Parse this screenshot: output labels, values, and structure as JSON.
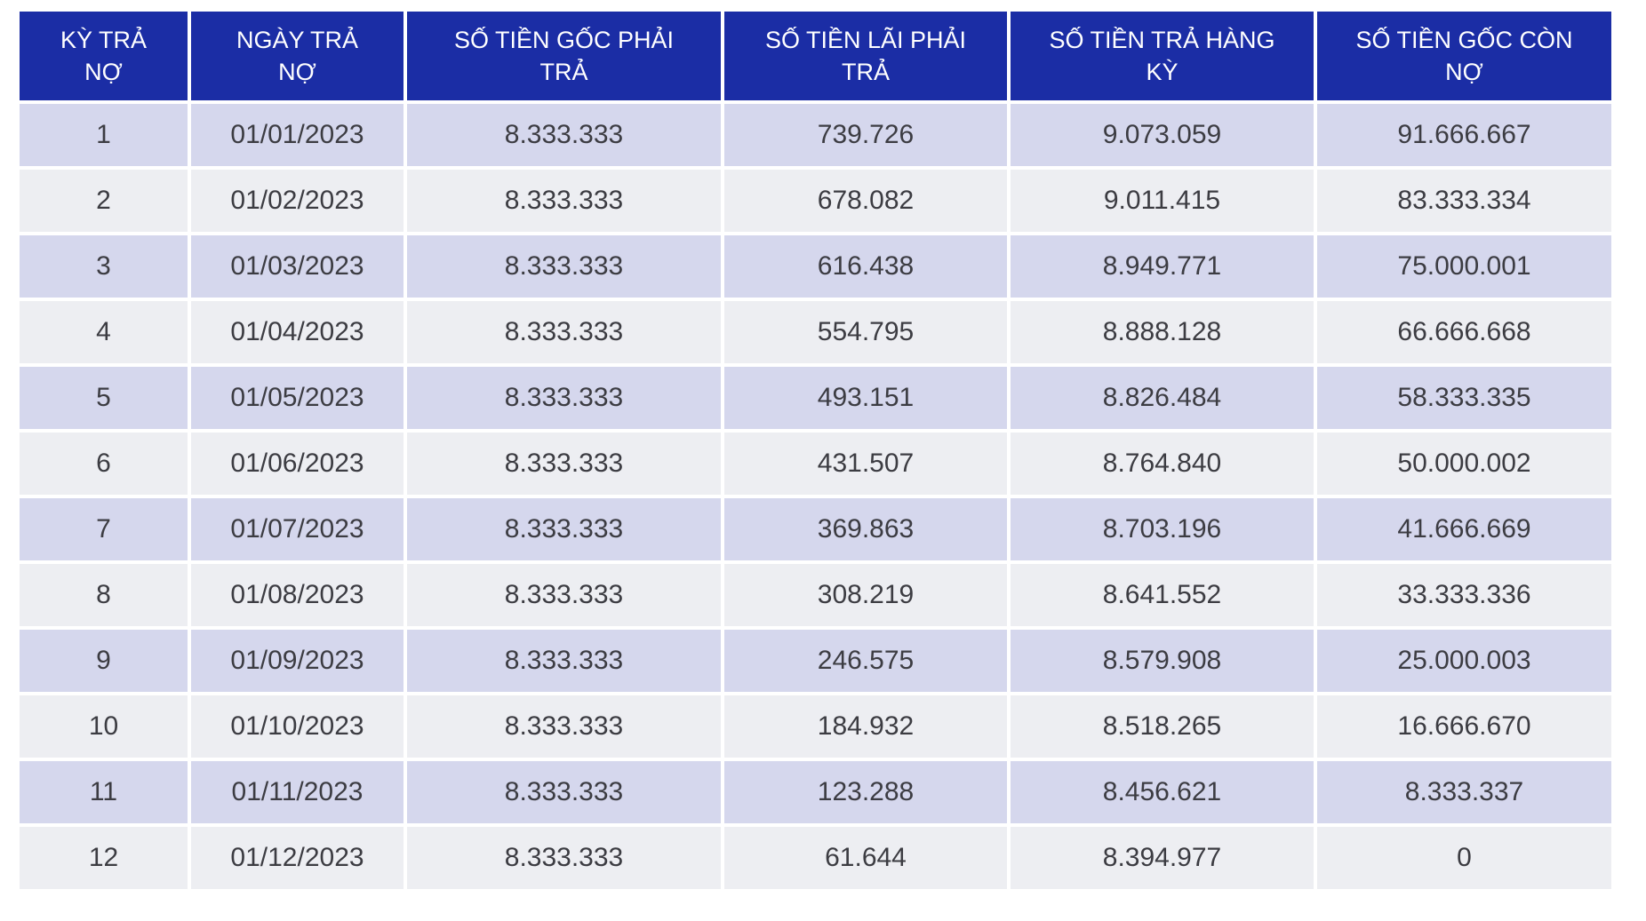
{
  "ui": {
    "colors": {
      "header_bg": "#1B2DA5",
      "header_text": "#FFFFFF",
      "row_odd_bg": "#D5D7ED",
      "row_even_bg": "#EDEEF2",
      "body_text": "#3C3C42",
      "page_bg": "#FFFFFF"
    }
  },
  "chart_data": {
    "type": "table",
    "title": "",
    "columns": [
      "KỲ TRẢ\nNỢ",
      "NGÀY TRẢ\nNỢ",
      "SỐ TIỀN GỐC PHẢI\nTRẢ",
      "SỐ TIỀN LÃI PHẢI\nTRẢ",
      "SỐ TIỀN TRẢ HÀNG\nKỲ",
      "SỐ TIỀN GỐC CÒN\nNỢ"
    ],
    "rows": [
      [
        "1",
        "01/01/2023",
        "8.333.333",
        "739.726",
        "9.073.059",
        "91.666.667"
      ],
      [
        "2",
        "01/02/2023",
        "8.333.333",
        "678.082",
        "9.011.415",
        "83.333.334"
      ],
      [
        "3",
        "01/03/2023",
        "8.333.333",
        "616.438",
        "8.949.771",
        "75.000.001"
      ],
      [
        "4",
        "01/04/2023",
        "8.333.333",
        "554.795",
        "8.888.128",
        "66.666.668"
      ],
      [
        "5",
        "01/05/2023",
        "8.333.333",
        "493.151",
        "8.826.484",
        "58.333.335"
      ],
      [
        "6",
        "01/06/2023",
        "8.333.333",
        "431.507",
        "8.764.840",
        "50.000.002"
      ],
      [
        "7",
        "01/07/2023",
        "8.333.333",
        "369.863",
        "8.703.196",
        "41.666.669"
      ],
      [
        "8",
        "01/08/2023",
        "8.333.333",
        "308.219",
        "8.641.552",
        "33.333.336"
      ],
      [
        "9",
        "01/09/2023",
        "8.333.333",
        "246.575",
        "8.579.908",
        "25.000.003"
      ],
      [
        "10",
        "01/10/2023",
        "8.333.333",
        "184.932",
        "8.518.265",
        "16.666.670"
      ],
      [
        "11",
        "01/11/2023",
        "8.333.333",
        "123.288",
        "8.456.621",
        "8.333.337"
      ],
      [
        "12",
        "01/12/2023",
        "8.333.333",
        "61.644",
        "8.394.977",
        "0"
      ]
    ]
  }
}
